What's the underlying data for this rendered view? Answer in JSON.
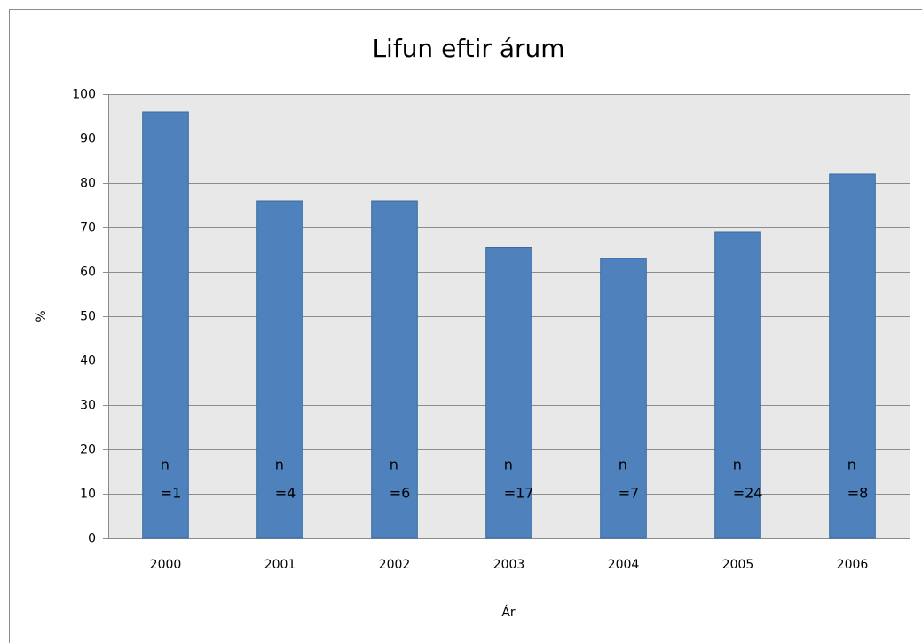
{
  "chart_data": {
    "type": "bar",
    "title": "Lifun eftir árum",
    "xlabel": "Ár",
    "ylabel": "%",
    "categories": [
      "2000",
      "2001",
      "2002",
      "2003",
      "2004",
      "2005",
      "2006"
    ],
    "values": [
      96,
      76,
      76,
      65.5,
      63,
      69,
      82
    ],
    "data_labels": [
      [
        "n",
        "=1"
      ],
      [
        "n",
        "=4"
      ],
      [
        "n",
        "=6"
      ],
      [
        "n",
        "=17"
      ],
      [
        "n",
        "=7"
      ],
      [
        "n",
        "=24"
      ],
      [
        "n",
        "=8"
      ]
    ],
    "color": "#4f81bd",
    "ylim": [
      0,
      100
    ],
    "yticks": [
      0,
      10,
      20,
      30,
      40,
      50,
      60,
      70,
      80,
      90,
      100
    ],
    "grid": true
  }
}
